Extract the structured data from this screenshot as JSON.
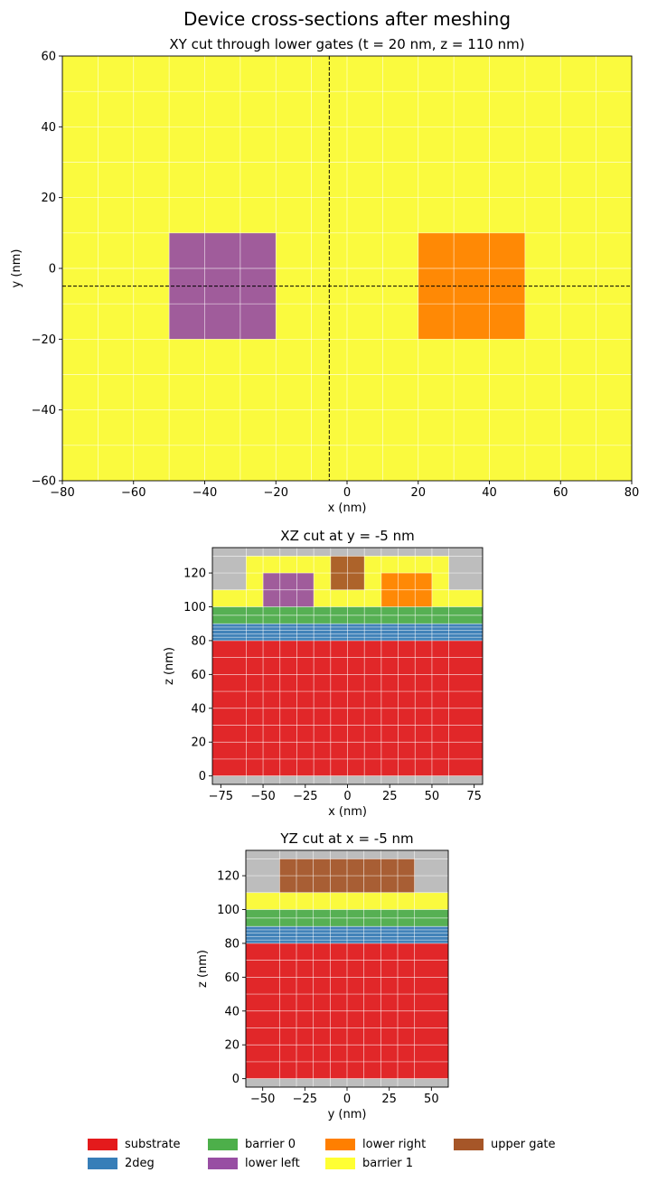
{
  "chart_data": {
    "suptitle": "Device cross-sections after meshing",
    "materials": [
      {
        "key": "substrate",
        "label": "substrate",
        "color": "#e41a1c"
      },
      {
        "key": "2deg",
        "label": "2deg",
        "color": "#377eb8"
      },
      {
        "key": "barrier0",
        "label": "barrier 0",
        "color": "#4daf4a"
      },
      {
        "key": "lower_left",
        "label": "lower left",
        "color": "#984ea3"
      },
      {
        "key": "lower_right",
        "label": "lower right",
        "color": "#ff7f00"
      },
      {
        "key": "barrier1",
        "label": "barrier 1",
        "color": "#ffff33"
      },
      {
        "key": "upper_gate",
        "label": "upper gate",
        "color": "#a65628"
      }
    ],
    "empty_color": "#bdbdbd",
    "panels": [
      {
        "type": "heatmap",
        "title": "XY cut through lower gates (t = 20 nm, z = 110 nm)",
        "xlabel": "x (nm)",
        "ylabel": "y (nm)",
        "xlim": [
          -80,
          80
        ],
        "ylim": [
          -60,
          60
        ],
        "xticks": [
          -80,
          -60,
          -40,
          -20,
          0,
          20,
          40,
          60,
          80
        ],
        "yticks": [
          -60,
          -40,
          -20,
          0,
          20,
          40,
          60
        ],
        "xtick_labels": [
          "−80",
          "−60",
          "−40",
          "−20",
          "0",
          "20",
          "40",
          "60",
          "80"
        ],
        "ytick_labels": [
          "−60",
          "−40",
          "−20",
          "0",
          "20",
          "40",
          "60"
        ],
        "grid_x": [
          -70,
          -60,
          -50,
          -40,
          -30,
          -20,
          -10,
          0,
          10,
          20,
          30,
          40,
          50,
          60,
          70
        ],
        "grid_y": [
          -50,
          -40,
          -30,
          -20,
          -10,
          0,
          10,
          20,
          30,
          40,
          50
        ],
        "regions": [
          {
            "material": "barrier1",
            "x": [
              -80,
              80
            ],
            "y": [
              -60,
              60
            ]
          },
          {
            "material": "lower_left",
            "x": [
              -50,
              -20
            ],
            "y": [
              -20,
              10
            ]
          },
          {
            "material": "lower_right",
            "x": [
              20,
              50
            ],
            "y": [
              -20,
              10
            ]
          }
        ],
        "cut_lines": [
          {
            "orientation": "vertical",
            "value": -5
          },
          {
            "orientation": "horizontal",
            "value": -5
          }
        ]
      },
      {
        "type": "heatmap",
        "title": "XZ cut at y = -5 nm",
        "xlabel": "x (nm)",
        "ylabel": "z (nm)",
        "xlim": [
          -80,
          80
        ],
        "ylim": [
          -5,
          135
        ],
        "xticks": [
          -75,
          -50,
          -25,
          0,
          25,
          50,
          75
        ],
        "yticks": [
          0,
          20,
          40,
          60,
          80,
          100,
          120
        ],
        "xtick_labels": [
          "−75",
          "−50",
          "−25",
          "0",
          "25",
          "50",
          "75"
        ],
        "ytick_labels": [
          "0",
          "20",
          "40",
          "60",
          "80",
          "100",
          "120"
        ],
        "grid_x": [
          -60,
          -50,
          -40,
          -30,
          -20,
          -10,
          0,
          10,
          20,
          30,
          40,
          50,
          60
        ],
        "grid_y": [
          0,
          10,
          20,
          30,
          40,
          50,
          60,
          70,
          80,
          82,
          84,
          86,
          88,
          90,
          95,
          100,
          110,
          120,
          130
        ],
        "regions": [
          {
            "material": "substrate",
            "x": [
              -80,
              80
            ],
            "y": [
              0,
              80
            ]
          },
          {
            "material": "2deg",
            "x": [
              -80,
              80
            ],
            "y": [
              80,
              90
            ]
          },
          {
            "material": "barrier0",
            "x": [
              -80,
              80
            ],
            "y": [
              90,
              100
            ]
          },
          {
            "material": "barrier1",
            "x": [
              -80,
              80
            ],
            "y": [
              100,
              110
            ]
          },
          {
            "material": "barrier1",
            "x": [
              -60,
              60
            ],
            "y": [
              110,
              130
            ]
          },
          {
            "material": "lower_left",
            "x": [
              -50,
              -20
            ],
            "y": [
              100,
              120
            ]
          },
          {
            "material": "lower_right",
            "x": [
              20,
              50
            ],
            "y": [
              100,
              120
            ]
          },
          {
            "material": "upper_gate",
            "x": [
              -10,
              10
            ],
            "y": [
              110,
              130
            ]
          }
        ]
      },
      {
        "type": "heatmap",
        "title": "YZ cut at x = -5 nm",
        "xlabel": "y (nm)",
        "ylabel": "z (nm)",
        "xlim": [
          -60,
          60
        ],
        "ylim": [
          -5,
          135
        ],
        "xticks": [
          -50,
          -25,
          0,
          25,
          50
        ],
        "yticks": [
          0,
          20,
          40,
          60,
          80,
          100,
          120
        ],
        "xtick_labels": [
          "−50",
          "−25",
          "0",
          "25",
          "50"
        ],
        "ytick_labels": [
          "0",
          "20",
          "40",
          "60",
          "80",
          "100",
          "120"
        ],
        "grid_x": [
          -40,
          -30,
          -20,
          -10,
          0,
          10,
          20,
          30,
          40
        ],
        "grid_y": [
          0,
          10,
          20,
          30,
          40,
          50,
          60,
          70,
          80,
          82,
          84,
          86,
          88,
          90,
          95,
          100,
          110,
          120,
          130
        ],
        "regions": [
          {
            "material": "substrate",
            "x": [
              -60,
              60
            ],
            "y": [
              0,
              80
            ]
          },
          {
            "material": "2deg",
            "x": [
              -60,
              60
            ],
            "y": [
              80,
              90
            ]
          },
          {
            "material": "barrier0",
            "x": [
              -60,
              60
            ],
            "y": [
              90,
              100
            ]
          },
          {
            "material": "barrier1",
            "x": [
              -60,
              60
            ],
            "y": [
              100,
              110
            ]
          },
          {
            "material": "upper_gate",
            "x": [
              -40,
              40
            ],
            "y": [
              110,
              130
            ]
          }
        ]
      }
    ]
  }
}
